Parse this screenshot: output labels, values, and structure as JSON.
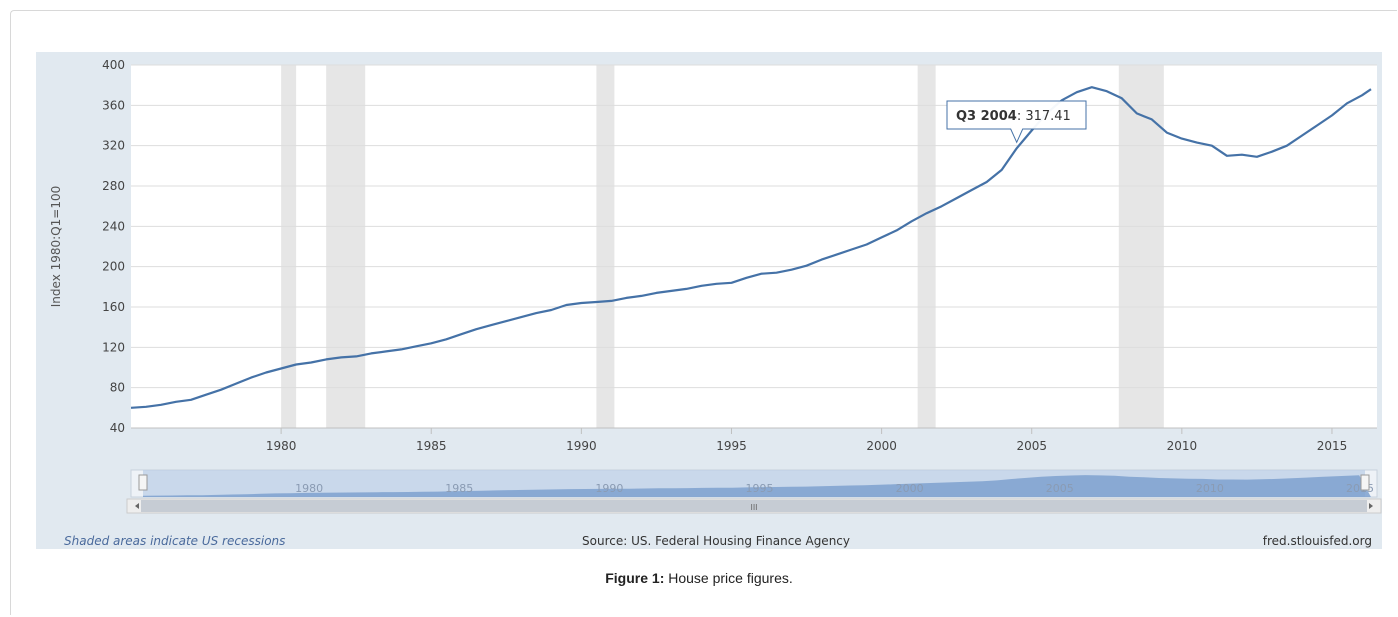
{
  "chart_data": {
    "type": "line",
    "ylabel": "Index 1980:Q1=100",
    "ylim": [
      40,
      400
    ],
    "yticks": [
      40,
      80,
      120,
      160,
      200,
      240,
      280,
      320,
      360,
      400
    ],
    "xlim": [
      1975.0,
      2016.5
    ],
    "xticks": [
      1980,
      1985,
      1990,
      1995,
      2000,
      2005,
      2010,
      2015
    ],
    "grid": true,
    "recessions": [
      [
        1980.0,
        1980.5
      ],
      [
        1981.5,
        1982.8
      ],
      [
        1990.5,
        1991.1
      ],
      [
        2001.2,
        2001.8
      ],
      [
        2007.9,
        2009.4
      ]
    ],
    "series": [
      {
        "color": "#4572a7",
        "points": [
          [
            1975.0,
            60
          ],
          [
            1975.5,
            61
          ],
          [
            1976.0,
            63
          ],
          [
            1976.5,
            66
          ],
          [
            1977.0,
            68
          ],
          [
            1977.5,
            73
          ],
          [
            1978.0,
            78
          ],
          [
            1978.5,
            84
          ],
          [
            1979.0,
            90
          ],
          [
            1979.5,
            95
          ],
          [
            1980.0,
            99
          ],
          [
            1980.5,
            103
          ],
          [
            1981.0,
            105
          ],
          [
            1981.5,
            108
          ],
          [
            1982.0,
            110
          ],
          [
            1982.5,
            111
          ],
          [
            1983.0,
            114
          ],
          [
            1983.5,
            116
          ],
          [
            1984.0,
            118
          ],
          [
            1984.5,
            121
          ],
          [
            1985.0,
            124
          ],
          [
            1985.5,
            128
          ],
          [
            1986.0,
            133
          ],
          [
            1986.5,
            138
          ],
          [
            1987.0,
            142
          ],
          [
            1987.5,
            146
          ],
          [
            1988.0,
            150
          ],
          [
            1988.5,
            154
          ],
          [
            1989.0,
            157
          ],
          [
            1989.5,
            162
          ],
          [
            1990.0,
            164
          ],
          [
            1990.5,
            165
          ],
          [
            1991.0,
            166
          ],
          [
            1991.5,
            169
          ],
          [
            1992.0,
            171
          ],
          [
            1992.5,
            174
          ],
          [
            1993.0,
            176
          ],
          [
            1993.5,
            178
          ],
          [
            1994.0,
            181
          ],
          [
            1994.5,
            183
          ],
          [
            1995.0,
            184
          ],
          [
            1995.5,
            189
          ],
          [
            1996.0,
            193
          ],
          [
            1996.5,
            194
          ],
          [
            1997.0,
            197
          ],
          [
            1997.5,
            201
          ],
          [
            1998.0,
            207
          ],
          [
            1998.5,
            212
          ],
          [
            1999.0,
            217
          ],
          [
            1999.5,
            222
          ],
          [
            2000.0,
            229
          ],
          [
            2000.5,
            236
          ],
          [
            2001.0,
            245
          ],
          [
            2001.5,
            253
          ],
          [
            2002.0,
            260
          ],
          [
            2002.5,
            268
          ],
          [
            2003.0,
            276
          ],
          [
            2003.5,
            284
          ],
          [
            2004.0,
            296
          ],
          [
            2004.5,
            317.41
          ],
          [
            2005.0,
            335
          ],
          [
            2005.5,
            352
          ],
          [
            2006.0,
            365
          ],
          [
            2006.5,
            373
          ],
          [
            2007.0,
            378
          ],
          [
            2007.5,
            374
          ],
          [
            2008.0,
            367
          ],
          [
            2008.5,
            352
          ],
          [
            2009.0,
            346
          ],
          [
            2009.5,
            333
          ],
          [
            2010.0,
            327
          ],
          [
            2010.5,
            323
          ],
          [
            2011.0,
            320
          ],
          [
            2011.5,
            310
          ],
          [
            2012.0,
            311
          ],
          [
            2012.5,
            309
          ],
          [
            2013.0,
            314
          ],
          [
            2013.5,
            320
          ],
          [
            2014.0,
            330
          ],
          [
            2014.5,
            340
          ],
          [
            2015.0,
            350
          ],
          [
            2015.5,
            362
          ],
          [
            2016.0,
            370
          ],
          [
            2016.3,
            376
          ]
        ]
      }
    ],
    "tooltip": {
      "period": "Q3 2004",
      "value_text": ": 317.41",
      "x": 2004.5,
      "y": 317.41
    }
  },
  "navigator": {
    "labels": [
      "1980",
      "1985",
      "1990",
      "1995",
      "2000",
      "2005",
      "2010",
      "2015"
    ],
    "scroll_grip": "III"
  },
  "footer": {
    "recession_note": "Shaded areas indicate US recessions",
    "source": "Source: US. Federal Housing Finance Agency",
    "site": "fred.stlouisfed.org"
  },
  "caption": {
    "label": "Figure 1:",
    "text": " House price figures."
  }
}
